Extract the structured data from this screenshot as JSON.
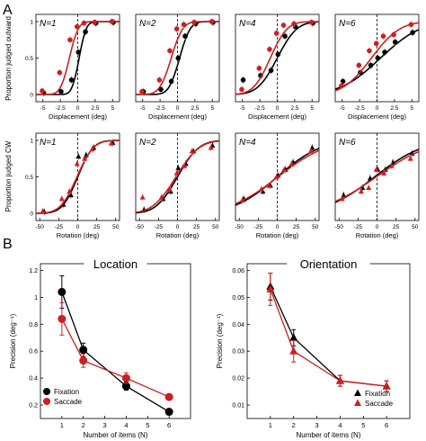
{
  "panel_labels": {
    "A": "A",
    "B": "B"
  },
  "colors": {
    "fixation": "#000000",
    "saccade": "#cc1f1f",
    "saccade_light": "#e7a3a3"
  },
  "row1": {
    "ylabel": "Proportion judged outward",
    "xlabel": "Displacement (deg)",
    "xticks": [
      "-5",
      "-2.5",
      "0",
      "2.5",
      "5"
    ],
    "yticks": [
      "0",
      "0.5",
      "1"
    ]
  },
  "row2": {
    "ylabel": "Proportion judged CW",
    "xlabel": "Rotation (deg)",
    "xticks": [
      "-50",
      "-25",
      "0",
      "25",
      "50"
    ],
    "yticks": [
      "0",
      "0.5",
      "1"
    ]
  },
  "n_labels": [
    "N=1",
    "N=2",
    "N=4",
    "N=6"
  ],
  "bottom": {
    "xlabel": "Number of items (N)",
    "left_title": "Location",
    "right_title": "Orientation",
    "left_ylabel": "Precision (deg⁻¹)",
    "right_ylabel": "Precision (deg⁻¹)",
    "left_yticks": [
      "0.2",
      "0.4",
      "0.6",
      "0.8",
      "1",
      "1.2"
    ],
    "right_yticks": [
      "0.01",
      "0.02",
      "0.03",
      "0.04",
      "0.05",
      "0.06"
    ],
    "xticks": [
      "1",
      "2",
      "3",
      "4",
      "5",
      "6"
    ],
    "legend_fixation": "Fixation",
    "legend_saccade": "Saccade"
  },
  "chart_data": [
    {
      "type": "scatter",
      "title": "N=1",
      "xlabel": "Displacement (deg)",
      "ylabel": "Proportion judged outward",
      "xlim": [
        -6,
        6
      ],
      "ylim": [
        0,
        1
      ],
      "series": [
        {
          "name": "Fixation",
          "x": [
            -5,
            -2.5,
            -1,
            0,
            1,
            2.5,
            5
          ],
          "y": [
            0.02,
            0.04,
            0.2,
            0.58,
            0.86,
            0.98,
            0.99
          ],
          "mu": 0.2,
          "sigma": 0.8
        },
        {
          "name": "Saccade",
          "x": [
            -5,
            -2.5,
            -1,
            0,
            1,
            2.5,
            5
          ],
          "y": [
            0.05,
            0.3,
            0.75,
            0.93,
            0.98,
            0.99,
            1.0
          ],
          "mu": -1.2,
          "sigma": 1.0
        }
      ]
    },
    {
      "type": "scatter",
      "title": "N=2",
      "xlabel": "Displacement (deg)",
      "ylabel": "Proportion judged outward",
      "xlim": [
        -6,
        6
      ],
      "ylim": [
        0,
        1
      ],
      "series": [
        {
          "name": "Fixation",
          "x": [
            -5,
            -2.5,
            -1,
            0,
            1,
            2.5,
            5
          ],
          "y": [
            0.04,
            0.07,
            0.18,
            0.5,
            0.8,
            0.97,
            0.99
          ],
          "mu": 0.3,
          "sigma": 1.2
        },
        {
          "name": "Saccade",
          "x": [
            -5,
            -2.5,
            -1,
            0,
            1,
            2.5,
            5
          ],
          "y": [
            0.04,
            0.2,
            0.6,
            0.9,
            0.96,
            0.99,
            1.0
          ],
          "mu": -0.9,
          "sigma": 1.3
        }
      ]
    },
    {
      "type": "scatter",
      "title": "N=4",
      "xlabel": "Displacement (deg)",
      "ylabel": "Proportion judged outward",
      "xlim": [
        -6,
        6
      ],
      "ylim": [
        0,
        1
      ],
      "series": [
        {
          "name": "Fixation",
          "x": [
            -5,
            -2.5,
            -1,
            0,
            1,
            2.5,
            5
          ],
          "y": [
            0.2,
            0.26,
            0.33,
            0.55,
            0.8,
            0.93,
            0.98
          ],
          "mu": 0.0,
          "sigma": 2.2
        },
        {
          "name": "Saccade",
          "x": [
            -5,
            -2.5,
            -1,
            0,
            1,
            2.5,
            5
          ],
          "y": [
            0.07,
            0.36,
            0.62,
            0.84,
            0.95,
            0.97,
            0.99
          ],
          "mu": -1.0,
          "sigma": 1.9
        }
      ]
    },
    {
      "type": "scatter",
      "title": "N=6",
      "xlabel": "Displacement (deg)",
      "ylabel": "Proportion judged outward",
      "xlim": [
        -6,
        6
      ],
      "ylim": [
        0,
        1
      ],
      "series": [
        {
          "name": "Fixation",
          "x": [
            -5,
            -2.5,
            -1,
            0,
            1,
            2.5,
            5
          ],
          "y": [
            0.18,
            0.3,
            0.4,
            0.5,
            0.58,
            0.72,
            0.85
          ],
          "mu": 0.5,
          "sigma": 4.5
        },
        {
          "name": "Saccade",
          "x": [
            -5,
            -2.5,
            -1,
            0,
            1,
            2.5,
            5
          ],
          "y": [
            0.12,
            0.4,
            0.6,
            0.7,
            0.8,
            0.82,
            0.96
          ],
          "mu": -0.8,
          "sigma": 3.2
        }
      ]
    },
    {
      "type": "scatter",
      "title": "N=1",
      "xlabel": "Rotation (deg)",
      "ylabel": "Proportion judged CW",
      "xlim": [
        -55,
        55
      ],
      "ylim": [
        0,
        1
      ],
      "series": [
        {
          "name": "Fixation",
          "x": [
            -45,
            -20,
            -10,
            0,
            10,
            20,
            45
          ],
          "y": [
            0.02,
            0.12,
            0.25,
            0.78,
            0.8,
            0.9,
            0.97
          ],
          "mu": 0,
          "sigma": 16
        },
        {
          "name": "Saccade",
          "x": [
            -45,
            -20,
            -10,
            0,
            10,
            20,
            45
          ],
          "y": [
            0.03,
            0.2,
            0.3,
            0.68,
            0.75,
            0.88,
            0.96
          ],
          "mu": -1,
          "sigma": 17
        }
      ]
    },
    {
      "type": "scatter",
      "title": "N=2",
      "xlabel": "Rotation (deg)",
      "ylabel": "Proportion judged CW",
      "xlim": [
        -55,
        55
      ],
      "ylim": [
        0,
        1
      ],
      "series": [
        {
          "name": "Fixation",
          "x": [
            -45,
            -20,
            -10,
            0,
            10,
            20,
            45
          ],
          "y": [
            0.05,
            0.2,
            0.3,
            0.62,
            0.68,
            0.85,
            0.93
          ],
          "mu": 0,
          "sigma": 22
        },
        {
          "name": "Saccade",
          "x": [
            -45,
            -20,
            -10,
            0,
            10,
            20,
            45
          ],
          "y": [
            0.22,
            0.22,
            0.33,
            0.55,
            0.65,
            0.85,
            0.9
          ],
          "mu": -2,
          "sigma": 24
        }
      ]
    },
    {
      "type": "scatter",
      "title": "N=4",
      "xlabel": "Rotation (deg)",
      "ylabel": "Proportion judged CW",
      "xlim": [
        -55,
        55
      ],
      "ylim": [
        0,
        1
      ],
      "series": [
        {
          "name": "Fixation",
          "x": [
            -45,
            -20,
            -10,
            0,
            10,
            20,
            45
          ],
          "y": [
            0.2,
            0.3,
            0.38,
            0.52,
            0.6,
            0.7,
            0.9
          ],
          "mu": 0,
          "sigma": 45
        },
        {
          "name": "Saccade",
          "x": [
            -45,
            -20,
            -10,
            0,
            10,
            20,
            45
          ],
          "y": [
            0.18,
            0.33,
            0.38,
            0.5,
            0.6,
            0.68,
            0.85
          ],
          "mu": 1,
          "sigma": 50
        }
      ]
    },
    {
      "type": "scatter",
      "title": "N=6",
      "xlabel": "Rotation (deg)",
      "ylabel": "Proportion judged CW",
      "xlim": [
        -55,
        55
      ],
      "ylim": [
        0,
        1
      ],
      "series": [
        {
          "name": "Fixation",
          "x": [
            -45,
            -20,
            -10,
            0,
            10,
            20,
            45
          ],
          "y": [
            0.25,
            0.35,
            0.48,
            0.6,
            0.6,
            0.7,
            0.82
          ],
          "mu": -3,
          "sigma": 50
        },
        {
          "name": "Saccade",
          "x": [
            -45,
            -20,
            -10,
            0,
            10,
            20,
            45
          ],
          "y": [
            0.2,
            0.3,
            0.35,
            0.6,
            0.55,
            0.65,
            0.75
          ],
          "mu": -1,
          "sigma": 55
        }
      ]
    },
    {
      "type": "line",
      "title": "Location",
      "xlabel": "Number of items (N)",
      "ylabel": "Precision (deg⁻¹)",
      "xlim": [
        0,
        7
      ],
      "ylim": [
        0.1,
        1.25
      ],
      "series": [
        {
          "name": "Fixation",
          "x": [
            1,
            2,
            4,
            6
          ],
          "y": [
            1.04,
            0.61,
            0.34,
            0.15
          ],
          "err": [
            0.12,
            0.05,
            0.03,
            0.01
          ]
        },
        {
          "name": "Saccade",
          "x": [
            1,
            2,
            4,
            6
          ],
          "y": [
            0.84,
            0.53,
            0.4,
            0.26
          ],
          "err": [
            0.12,
            0.05,
            0.04,
            0.02
          ]
        }
      ]
    },
    {
      "type": "line",
      "title": "Orientation",
      "xlabel": "Number of items (N)",
      "ylabel": "Precision (deg⁻¹)",
      "xlim": [
        0,
        7
      ],
      "ylim": [
        0.005,
        0.0625
      ],
      "series": [
        {
          "name": "Fixation",
          "x": [
            1,
            2,
            4,
            6
          ],
          "y": [
            0.054,
            0.035,
            0.019,
            0.017
          ],
          "err": [
            0.005,
            0.003,
            0.002,
            0.002
          ]
        },
        {
          "name": "Saccade",
          "x": [
            1,
            2,
            4,
            6
          ],
          "y": [
            0.053,
            0.03,
            0.019,
            0.017
          ],
          "err": [
            0.006,
            0.004,
            0.002,
            0.002
          ]
        }
      ]
    }
  ]
}
